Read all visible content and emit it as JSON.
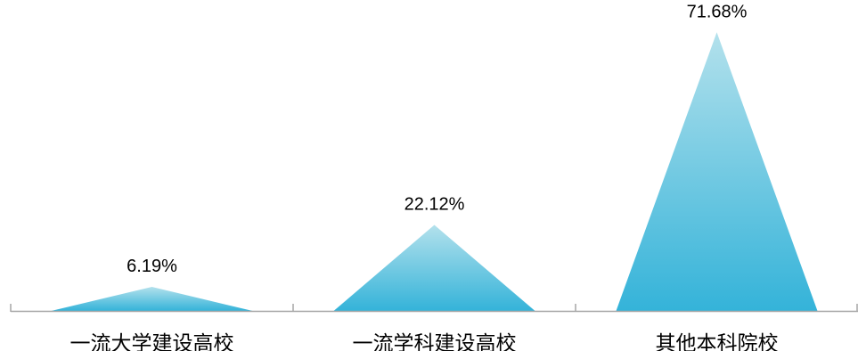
{
  "chart_data": {
    "type": "bar",
    "categories": [
      "一流大学建设高校",
      "一流学科建设高校",
      "其他本科院校"
    ],
    "values": [
      6.19,
      22.12,
      71.68
    ],
    "data_labels": [
      "6.19%",
      "22.12%",
      "71.68%"
    ],
    "title": "",
    "xlabel": "",
    "ylabel": "",
    "ylim": [
      0,
      80
    ],
    "grid": false,
    "legend": "none",
    "colors": {
      "bar_top": "#b3e1ec",
      "bar_bottom": "#34b3d9",
      "axis": "#a6a6a6",
      "text": "#000000"
    }
  }
}
